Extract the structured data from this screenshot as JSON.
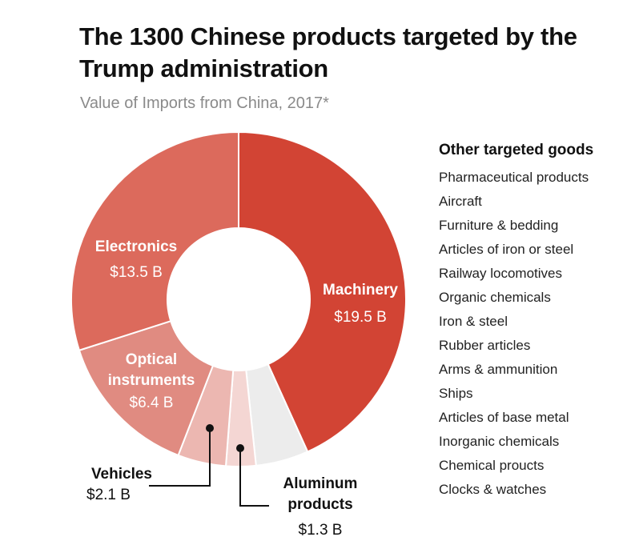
{
  "title": "The 1300 Chinese products targeted by the Trump administration",
  "subtitle": "Value of Imports from China, 2017*",
  "legend": {
    "title": "Other targeted goods",
    "items": [
      "Pharmaceutical products",
      "Aircraft",
      "Furniture & bedding",
      "Articles of iron or steel",
      "Railway locomotives",
      "Organic chemicals",
      "Iron & steel",
      "Rubber articles",
      "Arms & ammunition",
      "Ships",
      "Articles of base metal",
      "Inorganic chemicals",
      "Chemical proucts",
      "Clocks & watches"
    ]
  },
  "chart_data": {
    "type": "pie",
    "donut": true,
    "unit": "$ billions",
    "slices": [
      {
        "name": "Machinery",
        "value": 19.5,
        "value_label": "$19.5 B",
        "color": "#d24434"
      },
      {
        "name": "",
        "value": 2.3,
        "value_label": "",
        "color": "#ececec"
      },
      {
        "name": "Aluminum products",
        "value": 1.3,
        "value_label": "$1.3 B",
        "color": "#f4d6d3"
      },
      {
        "name": "Vehicles",
        "value": 2.1,
        "value_label": "$2.1 B",
        "color": "#ecb7b1"
      },
      {
        "name": "Optical instruments",
        "value": 6.4,
        "value_label": "$6.4 B",
        "color": "#e08b81"
      },
      {
        "name": "Electronics",
        "value": 13.5,
        "value_label": "$13.5 B",
        "color": "#dc6a5c"
      }
    ]
  }
}
